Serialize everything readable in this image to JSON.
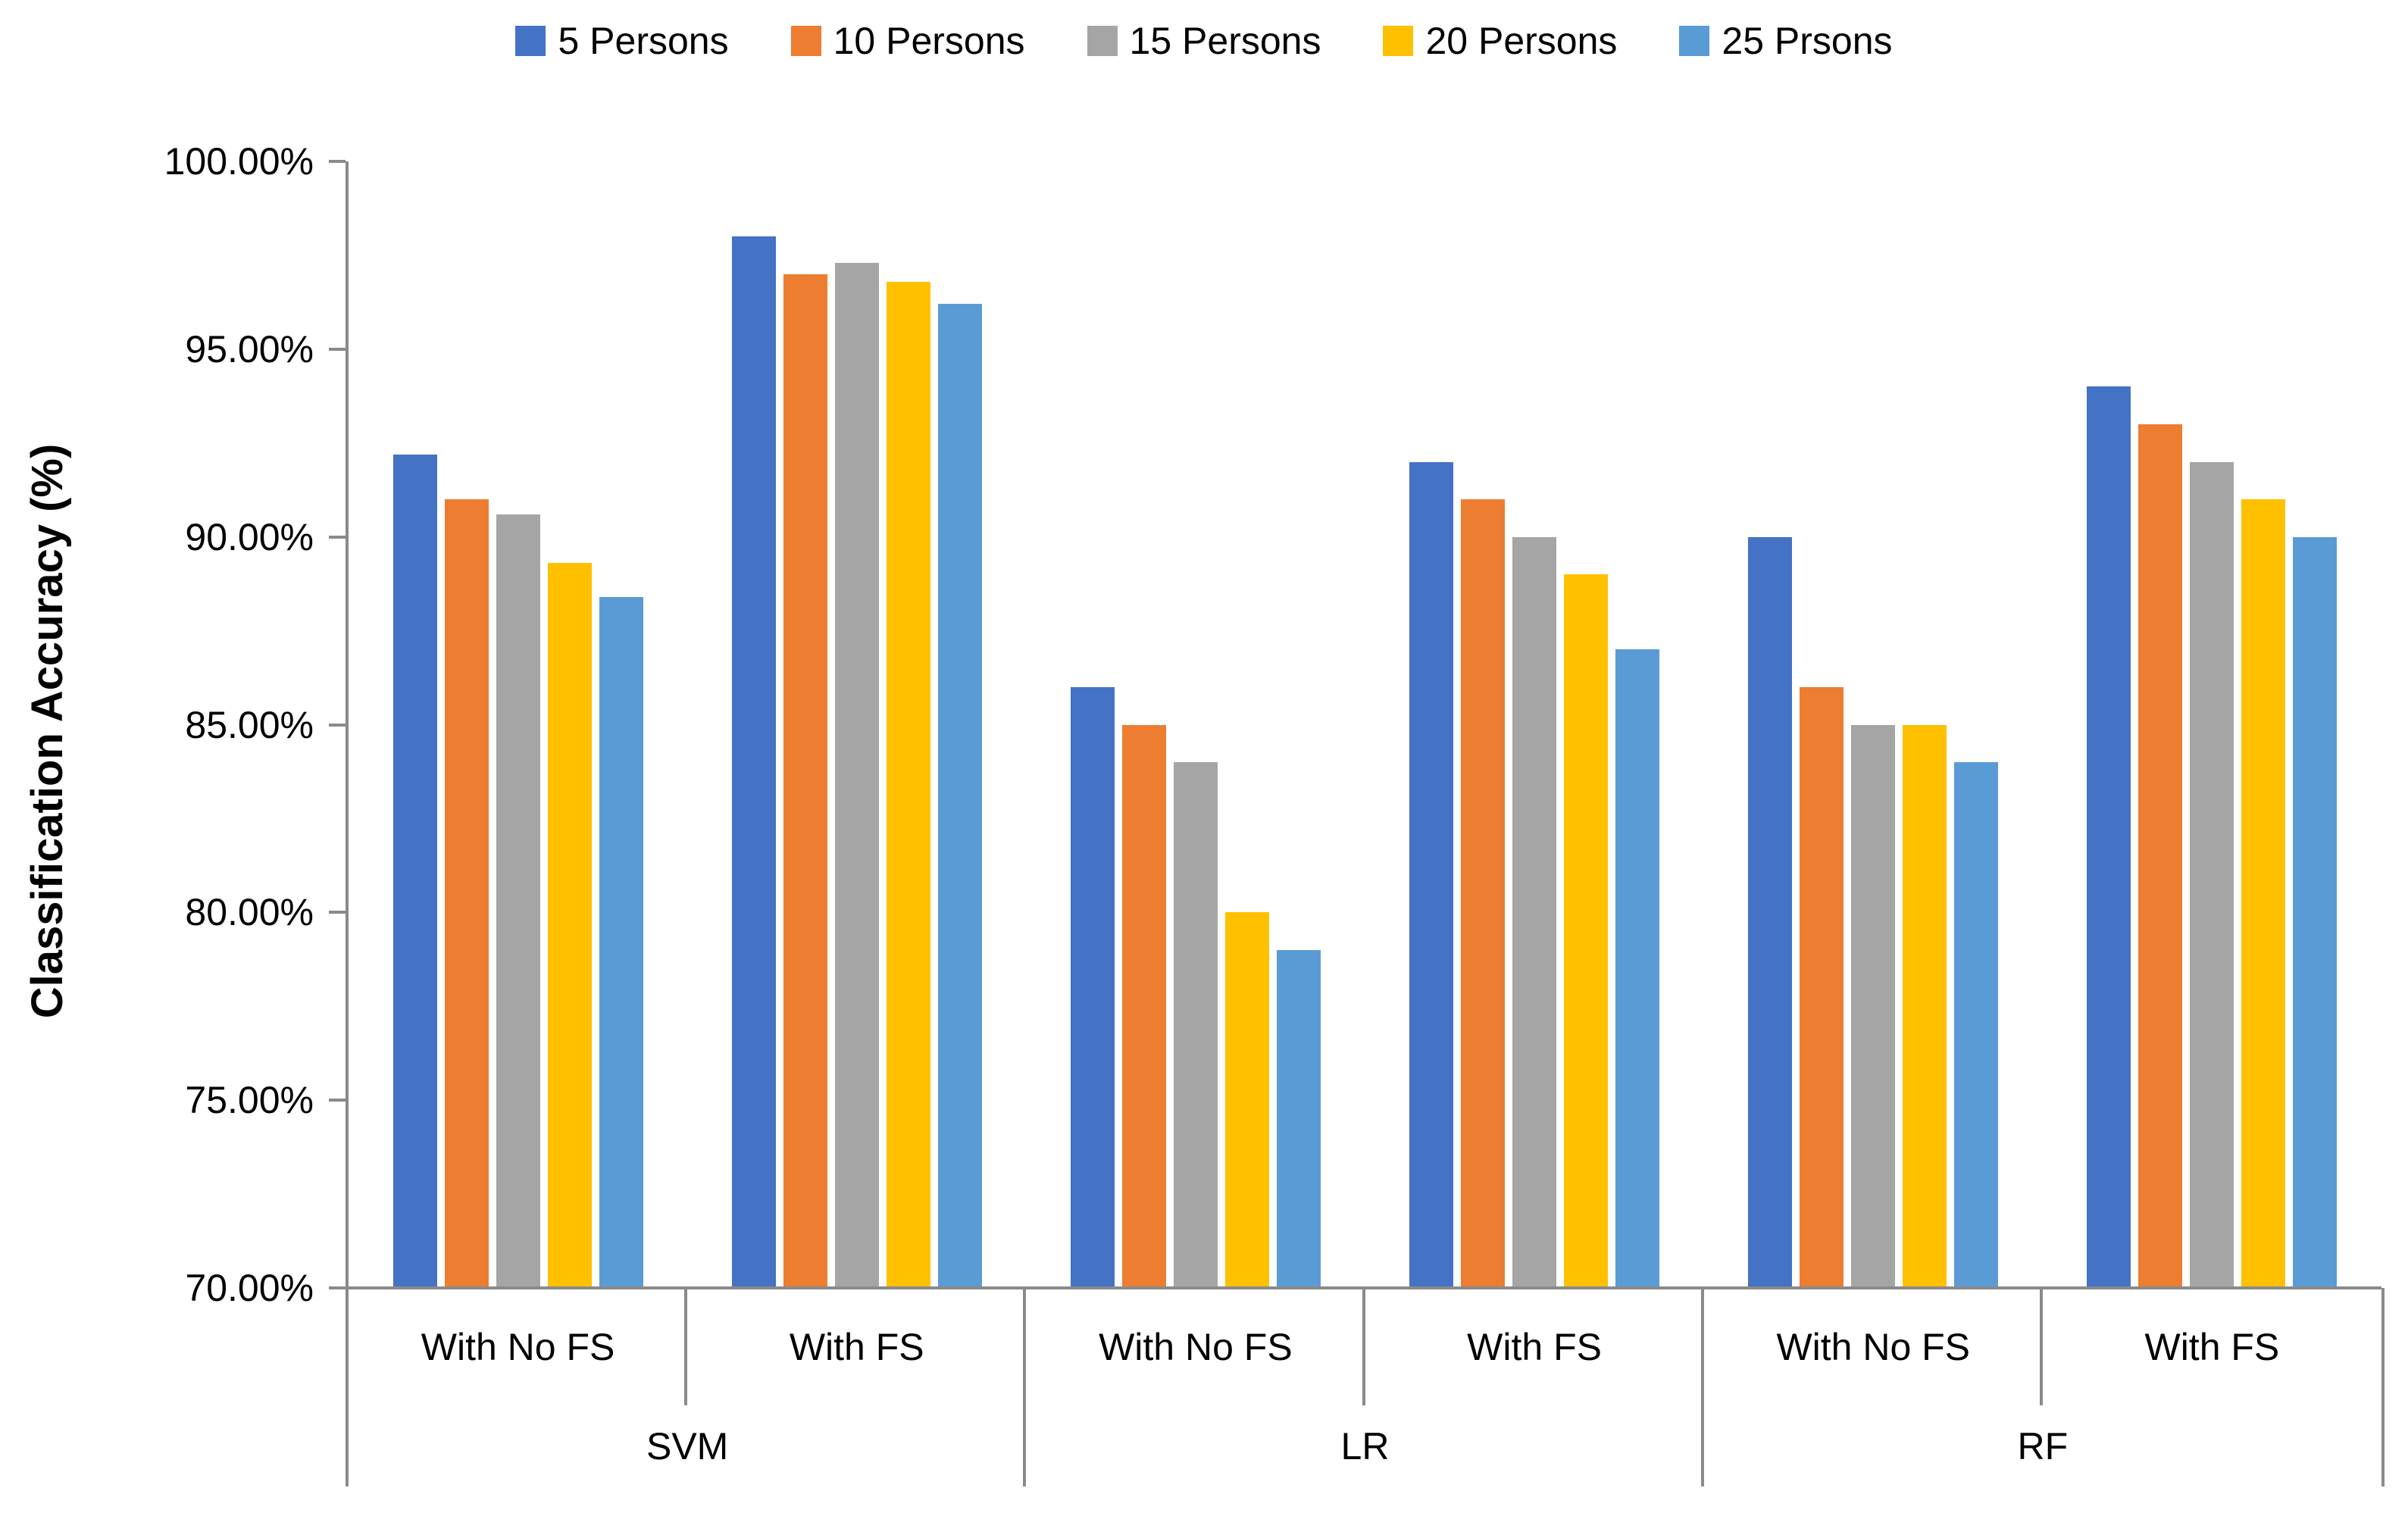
{
  "chart_data": {
    "type": "bar",
    "title": "",
    "xlabel": "",
    "ylabel": "Classification Accuracy (%)",
    "ylim": [
      70,
      100
    ],
    "grid": false,
    "legend_position": "top",
    "y_ticks": [
      {
        "value": 100,
        "label": "100.00%"
      },
      {
        "value": 95,
        "label": "95.00%"
      },
      {
        "value": 90,
        "label": "90.00%"
      },
      {
        "value": 85,
        "label": "85.00%"
      },
      {
        "value": 80,
        "label": "80.00%"
      },
      {
        "value": 75,
        "label": "75.00%"
      },
      {
        "value": 70,
        "label": "70.00%"
      }
    ],
    "series": [
      {
        "name": "5 Persons",
        "color": "#4472C4"
      },
      {
        "name": "10 Persons",
        "color": "#ED7D31"
      },
      {
        "name": "15 Persons",
        "color": "#A5A5A5"
      },
      {
        "name": "20 Persons",
        "color": "#FFC000"
      },
      {
        "name": "25 Prsons",
        "color": "#5B9BD5"
      }
    ],
    "groups": [
      {
        "label": "SVM",
        "categories": [
          {
            "label": "With No FS",
            "values": [
              92.2,
              91.0,
              90.6,
              89.3,
              88.4
            ]
          },
          {
            "label": "With FS",
            "values": [
              98.0,
              97.0,
              97.3,
              96.8,
              96.2
            ]
          }
        ]
      },
      {
        "label": "LR",
        "categories": [
          {
            "label": "With No FS",
            "values": [
              86.0,
              85.0,
              84.0,
              80.0,
              79.0
            ]
          },
          {
            "label": "With FS",
            "values": [
              92.0,
              91.0,
              90.0,
              89.0,
              87.0
            ]
          }
        ]
      },
      {
        "label": "RF",
        "categories": [
          {
            "label": "With No FS",
            "values": [
              90.0,
              86.0,
              85.0,
              85.0,
              84.0
            ]
          },
          {
            "label": "With FS",
            "values": [
              94.0,
              93.0,
              92.0,
              91.0,
              90.0
            ]
          }
        ]
      }
    ],
    "axis_color": "#8a8a8a"
  }
}
